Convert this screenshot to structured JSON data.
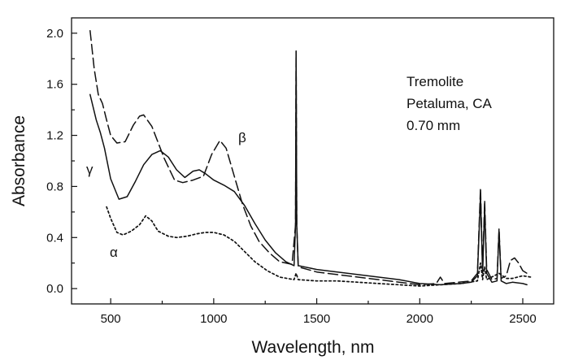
{
  "chart_data": {
    "type": "line",
    "title": "",
    "xlabel": "Wavelength, nm",
    "ylabel": "Absorbance",
    "xlim": [
      310,
      2650
    ],
    "ylim": [
      -0.12,
      2.12
    ],
    "x_ticks": [
      500,
      1000,
      1500,
      2000,
      2500
    ],
    "y_ticks": [
      0.0,
      0.4,
      0.8,
      1.2,
      1.6,
      2.0
    ],
    "x_tick_labels": [
      "500",
      "1000",
      "1500",
      "2000",
      "2500"
    ],
    "y_tick_labels": [
      "0.0",
      "0.4",
      "0.8",
      "1.2",
      "1.6",
      "2.0"
    ],
    "annotation_lines": [
      "Tremolite",
      "Petaluma, CA",
      "0.70 mm"
    ],
    "series": [
      {
        "label": "γ",
        "style": "solid",
        "points": [
          [
            400,
            1.52
          ],
          [
            430,
            1.32
          ],
          [
            450,
            1.22
          ],
          [
            470,
            1.1
          ],
          [
            500,
            0.86
          ],
          [
            540,
            0.7
          ],
          [
            580,
            0.72
          ],
          [
            620,
            0.84
          ],
          [
            660,
            0.97
          ],
          [
            700,
            1.05
          ],
          [
            740,
            1.08
          ],
          [
            780,
            1.03
          ],
          [
            820,
            0.93
          ],
          [
            860,
            0.87
          ],
          [
            900,
            0.92
          ],
          [
            930,
            0.93
          ],
          [
            960,
            0.9
          ],
          [
            1000,
            0.85
          ],
          [
            1050,
            0.81
          ],
          [
            1100,
            0.76
          ],
          [
            1150,
            0.65
          ],
          [
            1200,
            0.51
          ],
          [
            1250,
            0.38
          ],
          [
            1300,
            0.28
          ],
          [
            1350,
            0.21
          ],
          [
            1390,
            0.18
          ],
          [
            1397,
            0.5
          ],
          [
            1400,
            1.86
          ],
          [
            1403,
            0.5
          ],
          [
            1410,
            0.18
          ],
          [
            1500,
            0.15
          ],
          [
            1600,
            0.13
          ],
          [
            1700,
            0.11
          ],
          [
            1800,
            0.09
          ],
          [
            1900,
            0.07
          ],
          [
            2000,
            0.04
          ],
          [
            2100,
            0.03
          ],
          [
            2200,
            0.04
          ],
          [
            2250,
            0.05
          ],
          [
            2280,
            0.1
          ],
          [
            2295,
            0.73
          ],
          [
            2305,
            0.12
          ],
          [
            2315,
            0.64
          ],
          [
            2325,
            0.12
          ],
          [
            2350,
            0.05
          ],
          [
            2375,
            0.06
          ],
          [
            2385,
            0.45
          ],
          [
            2395,
            0.06
          ],
          [
            2420,
            0.04
          ],
          [
            2450,
            0.05
          ],
          [
            2500,
            0.04
          ],
          [
            2520,
            0.03
          ]
        ]
      },
      {
        "label": "β",
        "style": "dashed",
        "points": [
          [
            400,
            2.02
          ],
          [
            420,
            1.72
          ],
          [
            440,
            1.52
          ],
          [
            460,
            1.45
          ],
          [
            480,
            1.32
          ],
          [
            500,
            1.2
          ],
          [
            530,
            1.14
          ],
          [
            570,
            1.15
          ],
          [
            610,
            1.28
          ],
          [
            640,
            1.35
          ],
          [
            660,
            1.36
          ],
          [
            700,
            1.27
          ],
          [
            760,
            1.02
          ],
          [
            810,
            0.85
          ],
          [
            850,
            0.83
          ],
          [
            900,
            0.85
          ],
          [
            950,
            0.88
          ],
          [
            990,
            1.05
          ],
          [
            1030,
            1.16
          ],
          [
            1060,
            1.1
          ],
          [
            1100,
            0.88
          ],
          [
            1140,
            0.66
          ],
          [
            1180,
            0.49
          ],
          [
            1220,
            0.37
          ],
          [
            1270,
            0.28
          ],
          [
            1320,
            0.21
          ],
          [
            1380,
            0.19
          ],
          [
            1397,
            0.5
          ],
          [
            1400,
            1.86
          ],
          [
            1403,
            0.5
          ],
          [
            1410,
            0.17
          ],
          [
            1500,
            0.13
          ],
          [
            1600,
            0.11
          ],
          [
            1700,
            0.09
          ],
          [
            1800,
            0.07
          ],
          [
            1900,
            0.05
          ],
          [
            2000,
            0.03
          ],
          [
            2080,
            0.04
          ],
          [
            2100,
            0.09
          ],
          [
            2120,
            0.04
          ],
          [
            2250,
            0.06
          ],
          [
            2280,
            0.12
          ],
          [
            2295,
            0.79
          ],
          [
            2305,
            0.14
          ],
          [
            2315,
            0.69
          ],
          [
            2325,
            0.15
          ],
          [
            2350,
            0.07
          ],
          [
            2375,
            0.08
          ],
          [
            2385,
            0.47
          ],
          [
            2395,
            0.08
          ],
          [
            2420,
            0.1
          ],
          [
            2440,
            0.22
          ],
          [
            2460,
            0.24
          ],
          [
            2480,
            0.2
          ],
          [
            2500,
            0.14
          ],
          [
            2520,
            0.12
          ]
        ]
      },
      {
        "label": "α",
        "style": "dotted",
        "points": [
          [
            480,
            0.64
          ],
          [
            500,
            0.55
          ],
          [
            530,
            0.44
          ],
          [
            560,
            0.42
          ],
          [
            600,
            0.45
          ],
          [
            640,
            0.5
          ],
          [
            670,
            0.57
          ],
          [
            700,
            0.53
          ],
          [
            730,
            0.45
          ],
          [
            780,
            0.41
          ],
          [
            820,
            0.4
          ],
          [
            870,
            0.41
          ],
          [
            920,
            0.43
          ],
          [
            960,
            0.44
          ],
          [
            1000,
            0.44
          ],
          [
            1050,
            0.42
          ],
          [
            1100,
            0.37
          ],
          [
            1150,
            0.29
          ],
          [
            1200,
            0.21
          ],
          [
            1260,
            0.14
          ],
          [
            1320,
            0.09
          ],
          [
            1390,
            0.07
          ],
          [
            1400,
            0.12
          ],
          [
            1410,
            0.07
          ],
          [
            1500,
            0.06
          ],
          [
            1600,
            0.06
          ],
          [
            1700,
            0.05
          ],
          [
            1800,
            0.04
          ],
          [
            1900,
            0.03
          ],
          [
            2000,
            0.02
          ],
          [
            2100,
            0.03
          ],
          [
            2200,
            0.04
          ],
          [
            2280,
            0.06
          ],
          [
            2295,
            0.2
          ],
          [
            2305,
            0.07
          ],
          [
            2315,
            0.17
          ],
          [
            2325,
            0.07
          ],
          [
            2385,
            0.12
          ],
          [
            2420,
            0.08
          ],
          [
            2450,
            0.08
          ],
          [
            2500,
            0.1
          ],
          [
            2540,
            0.09
          ]
        ]
      }
    ]
  }
}
